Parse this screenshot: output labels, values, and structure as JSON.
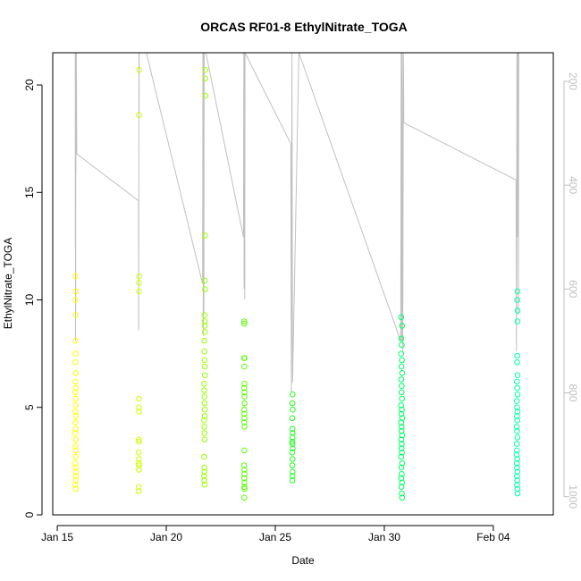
{
  "chart_data": {
    "type": "scatter",
    "title": "ORCAS RF01-8 EthylNitrate_TOGA",
    "xlabel": "Date",
    "ylabel": "EthylNitrate_TOGA",
    "ylim": [
      0,
      21.5
    ],
    "x_ticks": [
      {
        "date": "2016-01-15",
        "label": "Jan 15"
      },
      {
        "date": "2016-01-20",
        "label": "Jan 20"
      },
      {
        "date": "2016-01-25",
        "label": "Jan 25"
      },
      {
        "date": "2016-01-30",
        "label": "Jan 30"
      },
      {
        "date": "2016-02-04",
        "label": "Feb 04"
      }
    ],
    "x_range": [
      "2016-01-14T19:00",
      "2016-02-06T18:00"
    ],
    "y_ticks": [
      0,
      5,
      10,
      15,
      20
    ],
    "right_axis": {
      "ticks": [
        200,
        400,
        600,
        800,
        1000
      ],
      "range_top_to_bottom": [
        145,
        1035
      ],
      "color": "#c0c0c0",
      "series": {
        "color": "#c0c0c0",
        "points": [
          [
            "2016-01-15T19:50",
            145
          ],
          [
            "2016-01-15T19:55",
            520
          ],
          [
            "2016-01-15T20:00",
            145
          ],
          [
            "2016-01-15T20:05",
            700
          ],
          [
            "2016-01-15T20:10",
            145
          ],
          [
            "2016-01-15T20:15",
            650
          ],
          [
            "2016-01-15T20:20",
            145
          ],
          [
            "2016-01-15T20:30",
            380
          ],
          [
            "2016-01-15T21:00",
            145
          ],
          [
            "2016-01-15T21:30",
            340
          ],
          [
            "2016-01-18T17:30",
            430
          ],
          [
            "2016-01-18T17:40",
            680
          ],
          [
            "2016-01-18T17:50",
            145
          ],
          [
            "2016-01-18T18:00",
            260
          ],
          [
            "2016-01-18T18:10",
            145
          ],
          [
            "2016-01-19T02:00",
            145
          ],
          [
            "2016-01-21T16:00",
            590
          ],
          [
            "2016-01-21T16:20",
            145
          ],
          [
            "2016-01-21T16:40",
            690
          ],
          [
            "2016-01-21T17:00",
            145
          ],
          [
            "2016-01-21T17:20",
            650
          ],
          [
            "2016-01-21T17:40",
            145
          ],
          [
            "2016-01-21T18:10",
            145
          ],
          [
            "2016-01-21T19:30",
            145
          ],
          [
            "2016-01-23T13:00",
            500
          ],
          [
            "2016-01-23T13:20",
            145
          ],
          [
            "2016-01-23T13:40",
            600
          ],
          [
            "2016-01-23T14:00",
            145
          ],
          [
            "2016-01-23T14:20",
            620
          ],
          [
            "2016-01-23T14:40",
            145
          ],
          [
            "2016-01-25T17:00",
            320
          ],
          [
            "2016-01-25T17:40",
            800
          ],
          [
            "2016-01-25T18:20",
            145
          ],
          [
            "2016-01-25T19:00",
            780
          ],
          [
            "2016-01-26T02:00",
            145
          ],
          [
            "2016-01-30T18:00",
            700
          ],
          [
            "2016-01-30T18:30",
            145
          ],
          [
            "2016-01-30T19:10",
            700
          ],
          [
            "2016-01-30T19:40",
            145
          ],
          [
            "2016-01-30T20:20",
            720
          ],
          [
            "2016-01-30T21:00",
            145
          ],
          [
            "2016-01-30T21:30",
            280
          ],
          [
            "2016-02-05T01:00",
            390
          ],
          [
            "2016-02-05T01:30",
            720
          ],
          [
            "2016-02-05T02:00",
            145
          ],
          [
            "2016-02-05T02:30",
            500
          ],
          [
            "2016-02-05T03:00",
            145
          ],
          [
            "2016-02-05T03:30",
            650
          ],
          [
            "2016-02-05T04:00",
            145
          ]
        ]
      }
    },
    "series": [
      {
        "color": "#ffff00",
        "points": [
          [
            "2016-01-15T20:00",
            11.1
          ],
          [
            "2016-01-15T20:10",
            10.4
          ],
          [
            "2016-01-15T19:55",
            10.0
          ],
          [
            "2016-01-15T20:20",
            9.3
          ],
          [
            "2016-01-15T20:05",
            8.1
          ],
          [
            "2016-01-15T20:15",
            7.5
          ],
          [
            "2016-01-15T19:50",
            7.1
          ],
          [
            "2016-01-15T20:25",
            6.6
          ],
          [
            "2016-01-15T20:00",
            6.2
          ],
          [
            "2016-01-15T20:30",
            5.9
          ],
          [
            "2016-01-15T19:45",
            5.7
          ],
          [
            "2016-01-15T20:10",
            5.4
          ],
          [
            "2016-01-15T20:20",
            5.1
          ],
          [
            "2016-01-15T19:55",
            4.8
          ],
          [
            "2016-01-15T20:35",
            4.6
          ],
          [
            "2016-01-15T20:05",
            4.3
          ],
          [
            "2016-01-15T20:15",
            4.0
          ],
          [
            "2016-01-15T19:50",
            3.8
          ],
          [
            "2016-01-15T20:25",
            3.5
          ],
          [
            "2016-01-15T20:00",
            3.2
          ],
          [
            "2016-01-15T20:30",
            3.0
          ],
          [
            "2016-01-15T20:10",
            2.7
          ],
          [
            "2016-01-15T19:55",
            2.4
          ],
          [
            "2016-01-15T20:20",
            2.2
          ],
          [
            "2016-01-15T20:05",
            2.0
          ],
          [
            "2016-01-15T20:35",
            1.8
          ],
          [
            "2016-01-15T20:15",
            1.6
          ],
          [
            "2016-01-15T19:50",
            1.4
          ],
          [
            "2016-01-15T20:25",
            1.2
          ]
        ]
      },
      {
        "color": "#ccff00",
        "points": [
          [
            "2016-01-18T18:00",
            20.7
          ],
          [
            "2016-01-18T17:55",
            18.6
          ],
          [
            "2016-01-18T18:00",
            11.1
          ],
          [
            "2016-01-18T17:50",
            10.8
          ],
          [
            "2016-01-18T18:05",
            10.4
          ],
          [
            "2016-01-18T17:55",
            5.4
          ],
          [
            "2016-01-18T17:50",
            5.0
          ],
          [
            "2016-01-18T18:00",
            4.8
          ],
          [
            "2016-01-18T17:45",
            3.5
          ],
          [
            "2016-01-18T17:55",
            3.4
          ],
          [
            "2016-01-18T17:40",
            2.9
          ],
          [
            "2016-01-18T17:50",
            2.6
          ],
          [
            "2016-01-18T17:45",
            2.4
          ],
          [
            "2016-01-18T17:55",
            2.3
          ],
          [
            "2016-01-18T17:50",
            2.1
          ],
          [
            "2016-01-18T17:45",
            1.3
          ],
          [
            "2016-01-18T17:40",
            1.1
          ]
        ]
      },
      {
        "color": "#99ff00",
        "points": [
          [
            "2016-01-21T19:00",
            20.7
          ],
          [
            "2016-01-21T18:50",
            20.3
          ],
          [
            "2016-01-21T19:10",
            19.5
          ],
          [
            "2016-01-21T18:40",
            13.0
          ],
          [
            "2016-01-21T18:30",
            10.9
          ],
          [
            "2016-01-21T18:40",
            10.5
          ],
          [
            "2016-01-21T18:00",
            9.3
          ],
          [
            "2016-01-21T18:10",
            9.0
          ],
          [
            "2016-01-21T18:20",
            8.8
          ],
          [
            "2016-01-21T18:30",
            8.5
          ],
          [
            "2016-01-21T17:50",
            8.1
          ],
          [
            "2016-01-21T18:00",
            7.6
          ],
          [
            "2016-01-21T18:10",
            7.2
          ],
          [
            "2016-01-21T18:20",
            6.9
          ],
          [
            "2016-01-21T18:30",
            6.5
          ],
          [
            "2016-01-21T17:40",
            6.1
          ],
          [
            "2016-01-21T17:50",
            5.8
          ],
          [
            "2016-01-21T18:00",
            5.5
          ],
          [
            "2016-01-21T18:10",
            5.2
          ],
          [
            "2016-01-21T18:20",
            4.9
          ],
          [
            "2016-01-21T18:30",
            4.6
          ],
          [
            "2016-01-21T17:40",
            4.4
          ],
          [
            "2016-01-21T17:50",
            4.1
          ],
          [
            "2016-01-21T18:00",
            3.8
          ],
          [
            "2016-01-21T18:10",
            3.5
          ],
          [
            "2016-01-21T17:40",
            2.7
          ],
          [
            "2016-01-21T17:50",
            2.2
          ],
          [
            "2016-01-21T18:00",
            2.0
          ],
          [
            "2016-01-21T17:40",
            1.8
          ],
          [
            "2016-01-21T17:50",
            1.6
          ],
          [
            "2016-01-21T18:10",
            1.4
          ]
        ]
      },
      {
        "color": "#55ff00",
        "points": [
          [
            "2016-01-23T14:00",
            9.0
          ],
          [
            "2016-01-23T13:50",
            8.9
          ],
          [
            "2016-01-23T14:10",
            7.3
          ],
          [
            "2016-01-23T13:40",
            7.3
          ],
          [
            "2016-01-23T13:50",
            6.9
          ],
          [
            "2016-01-23T14:00",
            6.1
          ],
          [
            "2016-01-23T13:45",
            5.9
          ],
          [
            "2016-01-23T14:05",
            5.7
          ],
          [
            "2016-01-23T13:55",
            5.5
          ],
          [
            "2016-01-23T14:10",
            5.2
          ],
          [
            "2016-01-23T13:40",
            4.9
          ],
          [
            "2016-01-23T13:50",
            4.7
          ],
          [
            "2016-01-23T14:00",
            4.5
          ],
          [
            "2016-01-23T13:45",
            4.3
          ],
          [
            "2016-01-23T14:05",
            4.1
          ],
          [
            "2016-01-23T13:55",
            3.0
          ],
          [
            "2016-01-23T13:40",
            2.3
          ],
          [
            "2016-01-23T13:50",
            2.1
          ],
          [
            "2016-01-23T14:00",
            1.9
          ],
          [
            "2016-01-23T13:45",
            1.7
          ],
          [
            "2016-01-23T14:05",
            1.5
          ],
          [
            "2016-01-23T13:55",
            1.3
          ],
          [
            "2016-01-23T14:10",
            1.2
          ],
          [
            "2016-01-23T13:50",
            0.8
          ]
        ]
      },
      {
        "color": "#22ff22",
        "points": [
          [
            "2016-01-25T19:00",
            5.6
          ],
          [
            "2016-01-25T18:50",
            5.2
          ],
          [
            "2016-01-25T19:05",
            4.9
          ],
          [
            "2016-01-25T18:40",
            4.5
          ],
          [
            "2016-01-25T18:55",
            4.0
          ],
          [
            "2016-01-25T19:00",
            3.8
          ],
          [
            "2016-01-25T18:45",
            3.6
          ],
          [
            "2016-01-25T18:30",
            3.4
          ],
          [
            "2016-01-25T18:50",
            3.3
          ],
          [
            "2016-01-25T19:05",
            3.1
          ],
          [
            "2016-01-25T18:35",
            2.9
          ],
          [
            "2016-01-25T18:55",
            2.6
          ],
          [
            "2016-01-25T18:40",
            2.3
          ],
          [
            "2016-01-25T19:00",
            2.0
          ],
          [
            "2016-01-25T18:45",
            1.8
          ],
          [
            "2016-01-25T18:50",
            1.6
          ]
        ]
      },
      {
        "color": "#00ff66",
        "points": [
          [
            "2016-01-30T18:30",
            9.2
          ],
          [
            "2016-01-30T19:30",
            8.8
          ],
          [
            "2016-01-30T18:45",
            8.2
          ],
          [
            "2016-01-30T19:10",
            7.9
          ],
          [
            "2016-01-30T18:35",
            7.5
          ],
          [
            "2016-01-30T19:20",
            7.2
          ],
          [
            "2016-01-30T18:50",
            6.9
          ],
          [
            "2016-01-30T19:40",
            6.6
          ],
          [
            "2016-01-30T18:40",
            6.3
          ],
          [
            "2016-01-30T19:05",
            6.0
          ],
          [
            "2016-01-30T18:55",
            5.7
          ],
          [
            "2016-01-30T19:25",
            5.4
          ],
          [
            "2016-01-30T18:30",
            5.1
          ],
          [
            "2016-01-30T19:15",
            4.9
          ],
          [
            "2016-01-30T18:45",
            4.7
          ],
          [
            "2016-01-30T19:35",
            4.5
          ],
          [
            "2016-01-30T18:35",
            4.3
          ],
          [
            "2016-01-30T19:00",
            4.1
          ],
          [
            "2016-01-30T18:50",
            3.9
          ],
          [
            "2016-01-30T19:30",
            3.7
          ],
          [
            "2016-01-30T18:40",
            3.5
          ],
          [
            "2016-01-30T19:10",
            3.3
          ],
          [
            "2016-01-30T18:55",
            3.1
          ],
          [
            "2016-01-30T19:20",
            2.9
          ],
          [
            "2016-01-30T18:30",
            2.7
          ],
          [
            "2016-01-30T19:40",
            2.4
          ],
          [
            "2016-01-30T18:45",
            2.2
          ],
          [
            "2016-01-30T19:05",
            1.9
          ],
          [
            "2016-01-30T18:35",
            1.7
          ],
          [
            "2016-01-30T19:25",
            1.5
          ],
          [
            "2016-01-30T18:50",
            1.3
          ],
          [
            "2016-01-30T19:15",
            1.0
          ],
          [
            "2016-01-30T19:35",
            0.8
          ]
        ]
      },
      {
        "color": "#00ffaa",
        "points": [
          [
            "2016-02-05T02:30",
            10.4
          ],
          [
            "2016-02-05T02:20",
            10.0
          ],
          [
            "2016-02-05T02:40",
            9.5
          ],
          [
            "2016-02-05T02:30",
            9.0
          ],
          [
            "2016-02-05T02:20",
            7.4
          ],
          [
            "2016-02-05T02:10",
            7.1
          ],
          [
            "2016-02-05T02:30",
            6.5
          ],
          [
            "2016-02-05T02:00",
            6.2
          ],
          [
            "2016-02-05T02:20",
            5.9
          ],
          [
            "2016-02-05T02:40",
            5.6
          ],
          [
            "2016-02-05T01:50",
            5.3
          ],
          [
            "2016-02-05T02:10",
            5.0
          ],
          [
            "2016-02-05T02:30",
            4.8
          ],
          [
            "2016-02-05T02:00",
            4.6
          ],
          [
            "2016-02-05T02:20",
            4.4
          ],
          [
            "2016-02-05T01:40",
            4.1
          ],
          [
            "2016-02-05T02:10",
            3.9
          ],
          [
            "2016-02-05T02:30",
            3.6
          ],
          [
            "2016-02-05T01:50",
            3.3
          ],
          [
            "2016-02-05T02:00",
            3.0
          ],
          [
            "2016-02-05T01:40",
            2.8
          ],
          [
            "2016-02-05T02:20",
            2.6
          ],
          [
            "2016-02-05T01:50",
            2.4
          ],
          [
            "2016-02-05T02:10",
            2.2
          ],
          [
            "2016-02-05T02:30",
            2.0
          ],
          [
            "2016-02-05T02:00",
            1.8
          ],
          [
            "2016-02-05T02:20",
            1.6
          ],
          [
            "2016-02-05T02:10",
            1.4
          ],
          [
            "2016-02-05T02:30",
            1.2
          ],
          [
            "2016-02-05T02:40",
            1.0
          ]
        ]
      }
    ]
  }
}
